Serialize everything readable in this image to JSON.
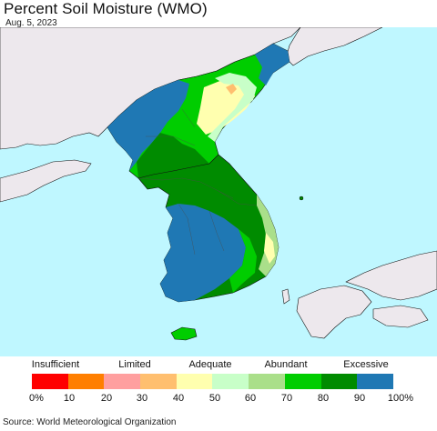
{
  "title": "Percent Soil Moisture (WMO)",
  "date": "Aug. 5, 2023",
  "legend": {
    "categories": [
      "Insufficient",
      "Limited",
      "Adequate",
      "Abundant",
      "Excessive"
    ],
    "colors": [
      "#ff0000",
      "#ff7f00",
      "#ff9f9f",
      "#ffbf6f",
      "#ffffaf",
      "#c8ffc8",
      "#aadf8a",
      "#00cd00",
      "#008b00",
      "#1f78b4"
    ],
    "ticks": [
      "0%",
      "10",
      "20",
      "30",
      "40",
      "50",
      "60",
      "70",
      "80",
      "90",
      "100%"
    ]
  },
  "source": "Source: World Meteorological Organization"
}
